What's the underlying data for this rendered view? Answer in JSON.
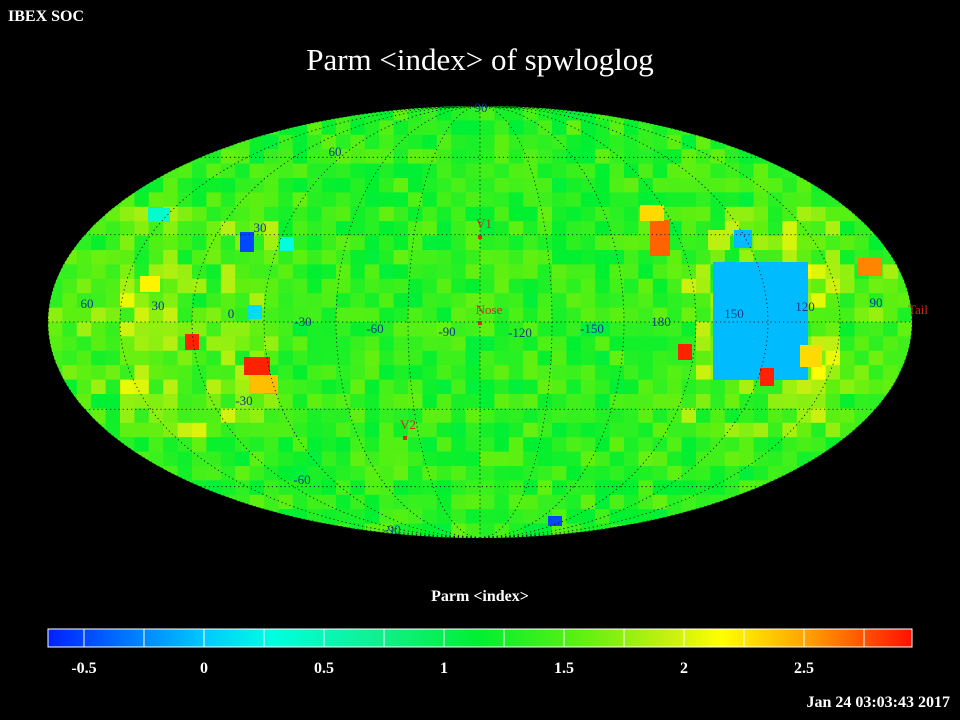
{
  "header_label": "IBEX SOC",
  "title": "Parm  <index> of spwloglog",
  "colorbar": {
    "title": "Parm  <index>",
    "min": -0.65,
    "max": 2.95,
    "ticks": [
      {
        "value": -0.5,
        "label": "-0.5"
      },
      {
        "value": 0,
        "label": "0"
      },
      {
        "value": 0.5,
        "label": "0.5"
      },
      {
        "value": 1,
        "label": "1"
      },
      {
        "value": 1.5,
        "label": "1.5"
      },
      {
        "value": 2,
        "label": "2"
      },
      {
        "value": 2.5,
        "label": "2.5"
      }
    ]
  },
  "map": {
    "projection": "mollweide",
    "background_index": 1.35,
    "longitude_labels": [
      "60",
      "30",
      "0",
      "-30",
      "-60",
      "-90",
      "-120",
      "-150",
      "180",
      "150",
      "120",
      "90"
    ],
    "latitude_labels": [
      "90",
      "60",
      "30",
      "-30",
      "-60",
      "-90"
    ],
    "markers": [
      {
        "label": "V1",
        "color": "#c83020"
      },
      {
        "label": "Nose",
        "color": "#c83020"
      },
      {
        "label": "V2",
        "color": "#c83020"
      },
      {
        "label": "Tail",
        "color": "#c83020"
      }
    ]
  },
  "timestamp": "Jan 24 03:03:43 2017"
}
